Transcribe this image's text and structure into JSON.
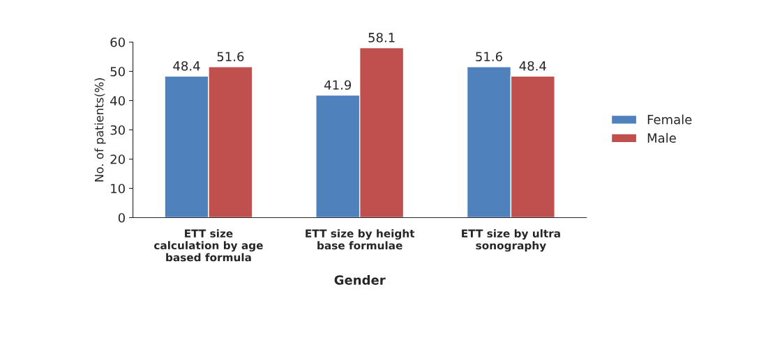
{
  "chart_data": {
    "type": "bar",
    "xlabel": "Gender",
    "ylabel": "No. of patients(%)",
    "categories": [
      "ETT size calculation by age based formula",
      "ETT size by height base formulae",
      "ETT size by ultra sonography"
    ],
    "series": [
      {
        "name": "Female",
        "color": "#4f81bd",
        "values": [
          48.4,
          41.9,
          51.6
        ]
      },
      {
        "name": "Male",
        "color": "#c0504d",
        "values": [
          51.6,
          58.1,
          48.4
        ]
      }
    ],
    "ylim": [
      0,
      60
    ],
    "yticks": [
      0,
      10,
      20,
      30,
      40,
      50,
      60
    ],
    "grid": false,
    "legend": "right",
    "data_labels": true
  }
}
